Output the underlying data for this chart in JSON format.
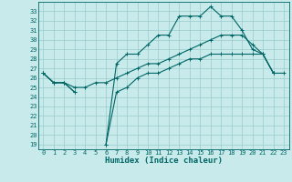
{
  "xlabel": "Humidex (Indice chaleur)",
  "bg_color": "#c8eaea",
  "grid_color": "#99cccc",
  "line_color": "#006666",
  "x_values": [
    0,
    1,
    2,
    3,
    4,
    5,
    6,
    7,
    8,
    9,
    10,
    11,
    12,
    13,
    14,
    15,
    16,
    17,
    18,
    19,
    20,
    21,
    22,
    23
  ],
  "line_max": [
    26.5,
    25.5,
    25.5,
    24.5,
    null,
    null,
    19.0,
    27.5,
    28.5,
    28.5,
    29.5,
    30.5,
    30.5,
    32.5,
    32.5,
    32.5,
    33.5,
    32.5,
    32.5,
    31.0,
    29.0,
    28.5,
    26.5,
    null
  ],
  "line_min": [
    26.5,
    25.5,
    25.5,
    24.5,
    null,
    null,
    19.0,
    24.5,
    25.0,
    26.0,
    26.5,
    26.5,
    27.0,
    27.5,
    28.0,
    28.0,
    28.5,
    28.5,
    28.5,
    28.5,
    28.5,
    28.5,
    26.5,
    null
  ],
  "line_mean": [
    26.5,
    25.5,
    25.5,
    25.0,
    25.0,
    25.5,
    25.5,
    26.0,
    26.5,
    27.0,
    27.5,
    27.5,
    28.0,
    28.5,
    29.0,
    29.5,
    30.0,
    30.5,
    30.5,
    30.5,
    29.5,
    28.5,
    26.5,
    26.5
  ],
  "ylim": [
    18.5,
    34.0
  ],
  "xlim": [
    -0.5,
    23.5
  ],
  "yticks": [
    19,
    20,
    21,
    22,
    23,
    24,
    25,
    26,
    27,
    28,
    29,
    30,
    31,
    32,
    33
  ],
  "xticks": [
    0,
    1,
    2,
    3,
    4,
    5,
    6,
    7,
    8,
    9,
    10,
    11,
    12,
    13,
    14,
    15,
    16,
    17,
    18,
    19,
    20,
    21,
    22,
    23
  ],
  "tick_fontsize": 5,
  "xlabel_fontsize": 6.5,
  "lw": 0.8,
  "marker_size": 3,
  "marker_ew": 0.7
}
